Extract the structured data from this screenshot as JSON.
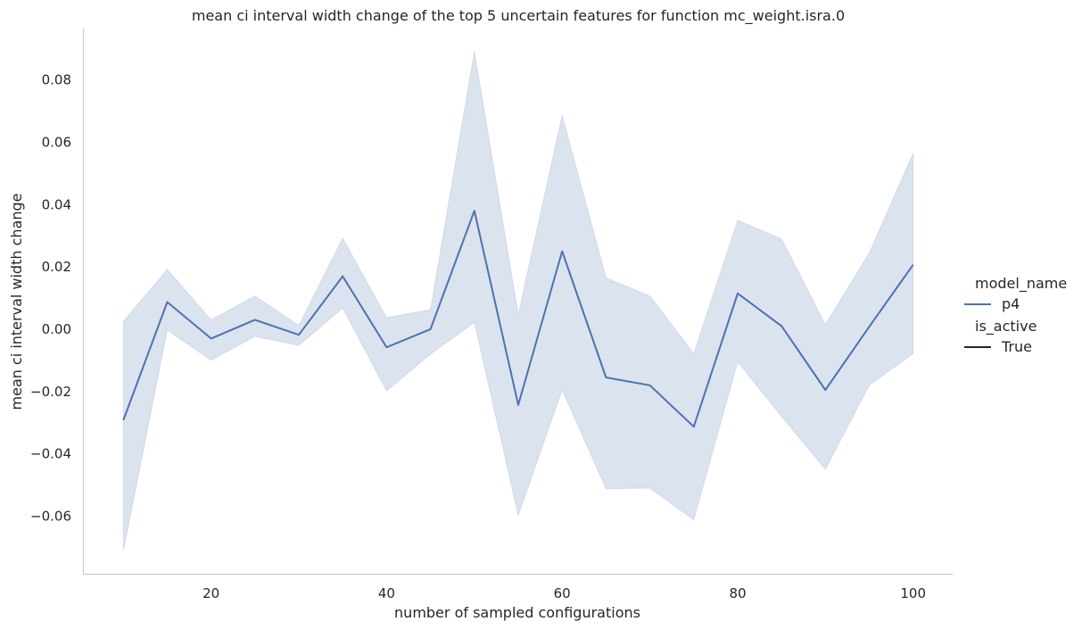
{
  "chart_data": {
    "type": "line",
    "title": "mean ci interval width change of the top 5 uncertain features for function mc_weight.isra.0",
    "xlabel": "number of sampled configurations",
    "ylabel": "mean ci interval width change",
    "xlim": [
      5.5,
      104.5
    ],
    "ylim": [
      -0.0785,
      0.0965
    ],
    "xticks": [
      20,
      40,
      60,
      80,
      100
    ],
    "xtick_labels": [
      "20",
      "40",
      "60",
      "80",
      "100"
    ],
    "yticks": [
      -0.06,
      -0.04,
      -0.02,
      0.0,
      0.02,
      0.04,
      0.06,
      0.08
    ],
    "ytick_labels": [
      "−0.06",
      "−0.04",
      "−0.02",
      "0.00",
      "0.02",
      "0.04",
      "0.06",
      "0.08"
    ],
    "grid": false,
    "legend_position": "right",
    "series": [
      {
        "name": "p4",
        "color": "#4c72b0",
        "band_color": "#4c72b0",
        "x": [
          10,
          15,
          20,
          25,
          30,
          35,
          40,
          45,
          50,
          55,
          60,
          65,
          70,
          75,
          80,
          85,
          90,
          95,
          100
        ],
        "y": [
          -0.0292,
          0.0087,
          -0.003,
          0.003,
          -0.0018,
          0.017,
          -0.0058,
          0.0,
          0.038,
          -0.0243,
          0.025,
          -0.0155,
          -0.018,
          -0.0313,
          0.0115,
          0.001,
          -0.0195,
          0.0008,
          0.0207
        ],
        "lower": [
          -0.0712,
          -0.0003,
          -0.01,
          -0.0023,
          -0.0052,
          0.0068,
          -0.0198,
          -0.008,
          0.0022,
          -0.0598,
          -0.0195,
          -0.0512,
          -0.051,
          -0.0612,
          -0.0105,
          -0.028,
          -0.045,
          -0.018,
          -0.0078
        ],
        "upper": [
          0.0025,
          0.0192,
          0.003,
          0.0107,
          0.0012,
          0.0292,
          0.0037,
          0.0063,
          0.0892,
          0.0048,
          0.0687,
          0.0165,
          0.0107,
          -0.0078,
          0.035,
          0.029,
          0.0015,
          0.0245,
          0.0565
        ]
      }
    ],
    "legend": {
      "hue_title": "model_name",
      "hue_entries": [
        {
          "label": "p4",
          "color": "#4c72b0"
        }
      ],
      "style_title": "is_active",
      "style_entries": [
        {
          "label": "True",
          "color": "#262626"
        }
      ]
    }
  }
}
